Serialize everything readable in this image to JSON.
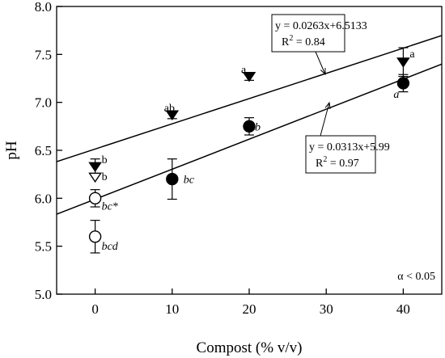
{
  "chart_data": {
    "type": "scatter",
    "xlabel": "Compost (% v/v)",
    "ylabel": "pH",
    "xlim": [
      -5,
      45
    ],
    "ylim": [
      5.0,
      8.0
    ],
    "x_ticks": [
      "0",
      "10",
      "20",
      "30",
      "40"
    ],
    "y_ticks": [
      "5.0",
      "5.5",
      "6.0",
      "6.5",
      "7.0",
      "7.5",
      "8.0"
    ],
    "grid": false,
    "significance_note": "α < 0.05",
    "series": [
      {
        "marker": "filled-triangle-down",
        "points": [
          {
            "x": 0,
            "y": 6.33,
            "err": 0.08,
            "label": "b",
            "label_style": "normal"
          },
          {
            "x": 10,
            "y": 6.87,
            "err": 0.04,
            "label": "ab",
            "label_style": "normal"
          },
          {
            "x": 20,
            "y": 7.27,
            "err": 0.04,
            "label": "a",
            "label_style": "normal"
          },
          {
            "x": 40,
            "y": 7.42,
            "err": 0.15,
            "label": "a",
            "label_style": "normal"
          }
        ],
        "fit": {
          "slope": 0.0263,
          "intercept": 6.5133,
          "equation": "y = 0.0263x+6.5133",
          "r2_prefix": "R",
          "r2_exp": "2",
          "r2_value": " = 0.84"
        }
      },
      {
        "marker": "open-triangle-down",
        "points": [
          {
            "x": 0,
            "y": 6.22,
            "err": 0.0,
            "label": "b",
            "label_style": "normal"
          }
        ]
      },
      {
        "marker": "filled-circle",
        "points": [
          {
            "x": 10,
            "y": 6.2,
            "err": 0.21,
            "label": "bc",
            "label_style": "italic"
          },
          {
            "x": 20,
            "y": 6.75,
            "err": 0.09,
            "label": "b",
            "label_style": "italic"
          },
          {
            "x": 40,
            "y": 7.2,
            "err": 0.09,
            "label": "a",
            "label_style": "italic"
          }
        ],
        "fit": {
          "slope": 0.0313,
          "intercept": 5.99,
          "equation": "y = 0.0313x+5.99",
          "r2_prefix": "R",
          "r2_exp": "2",
          "r2_value": " = 0.97"
        }
      },
      {
        "marker": "open-circle",
        "points": [
          {
            "x": 0,
            "y": 6.0,
            "err": 0.09,
            "label": "bc*",
            "label_style": "italic"
          },
          {
            "x": 0,
            "y": 5.6,
            "err": 0.17,
            "label": "bcd",
            "label_style": "italic"
          }
        ]
      }
    ]
  }
}
